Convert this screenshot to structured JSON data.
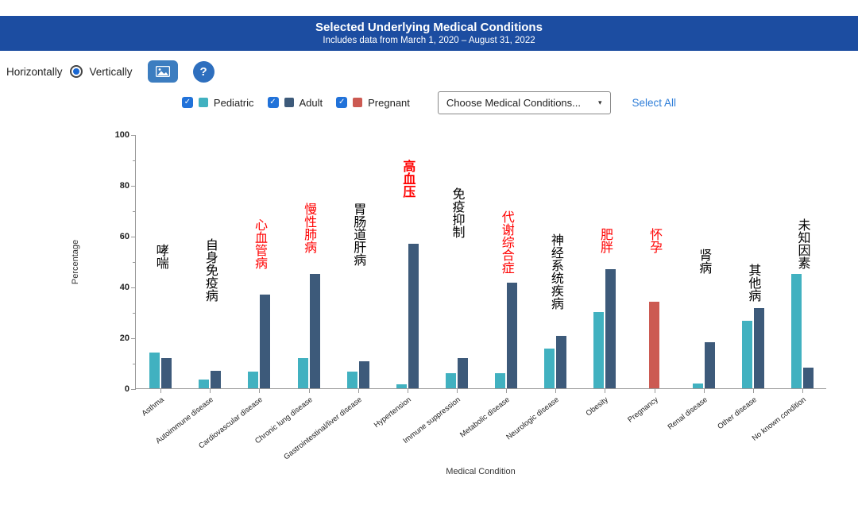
{
  "header": {
    "title": "Selected Underlying Medical Conditions",
    "subtitle": "Includes data from March 1, 2020 – August 31, 2022"
  },
  "controls": {
    "horizontal_label": "Horizontally",
    "vertical_label": "Vertically",
    "selected_orientation": "Vertically",
    "image_button_icon": "image-icon",
    "help_label": "?"
  },
  "legend": {
    "check_glyph": "✓",
    "items": [
      {
        "label": "Pediatric",
        "color": "#41b1c0",
        "checked": true
      },
      {
        "label": "Adult",
        "color": "#3d5a7a",
        "checked": true
      },
      {
        "label": "Pregnant",
        "color": "#cc5a52",
        "checked": true
      }
    ],
    "dropdown_label": "Choose Medical Conditions...",
    "dropdown_caret": "▾",
    "select_all_label": "Select All"
  },
  "chart_data": {
    "type": "bar",
    "title": "Selected Underlying Medical Conditions",
    "xlabel": "Medical Condition",
    "ylabel": "Percentage",
    "ylim": [
      0,
      100
    ],
    "y_major_ticks": [
      0,
      20,
      40,
      60,
      80,
      100
    ],
    "y_minor_ticks": [
      10,
      30,
      50,
      70,
      90
    ],
    "grid": false,
    "legend_position": "top",
    "categories": [
      "Asthma",
      "Autoimmune disease",
      "Cardiovascular disease",
      "Chronic lung disease",
      "Gastrointestinal/liver disease",
      "Hypertension",
      "Immune suppression",
      "Metabolic disease",
      "Neurologic disease",
      "Obesity",
      "Pregnancy",
      "Renal disease",
      "Other disease",
      "No known condition"
    ],
    "series": [
      {
        "name": "Pediatric",
        "color": "#41b1c0",
        "values": [
          14,
          3.5,
          6.5,
          12,
          6.5,
          1.5,
          6,
          6,
          15.5,
          30,
          null,
          2,
          26.5,
          45
        ]
      },
      {
        "name": "Adult",
        "color": "#3d5a7a",
        "values": [
          12,
          7,
          37,
          45,
          10.5,
          57,
          12,
          41.5,
          20.5,
          47,
          null,
          18,
          31.5,
          8
        ]
      },
      {
        "name": "Pregnant",
        "color": "#cc5a52",
        "values": [
          null,
          null,
          null,
          null,
          null,
          null,
          null,
          null,
          null,
          null,
          34,
          null,
          null,
          null
        ]
      }
    ],
    "annotations": [
      {
        "category": "Asthma",
        "text": "哮喘",
        "color": "#000000",
        "bold": false,
        "bottom_pct": 47
      },
      {
        "category": "Autoimmune disease",
        "text": "自身免疫病",
        "color": "#000000",
        "bold": false,
        "bottom_pct": 34
      },
      {
        "category": "Cardiovascular disease",
        "text": "心血管病",
        "color": "#ff0000",
        "bold": false,
        "bottom_pct": 47
      },
      {
        "category": "Chronic lung disease",
        "text": "慢性肺病",
        "color": "#ff0000",
        "bold": false,
        "bottom_pct": 53
      },
      {
        "category": "Gastrointestinal/liver disease",
        "text": "胃肠道肝病",
        "color": "#000000",
        "bold": false,
        "bottom_pct": 48
      },
      {
        "category": "Hypertension",
        "text": "高血压",
        "color": "#ff0000",
        "bold": true,
        "bottom_pct": 75
      },
      {
        "category": "Immune suppression",
        "text": "免疫抑制",
        "color": "#000000",
        "bold": false,
        "bottom_pct": 59
      },
      {
        "category": "Metabolic disease",
        "text": "代谢综合症",
        "color": "#ff0000",
        "bold": false,
        "bottom_pct": 45
      },
      {
        "category": "Neurologic disease",
        "text": "神经系统疾病",
        "color": "#000000",
        "bold": false,
        "bottom_pct": 31
      },
      {
        "category": "Obesity",
        "text": "肥胖",
        "color": "#ff0000",
        "bold": false,
        "bottom_pct": 53
      },
      {
        "category": "Pregnancy",
        "text": "怀孕",
        "color": "#ff0000",
        "bold": false,
        "bottom_pct": 53
      },
      {
        "category": "Renal disease",
        "text": "肾病",
        "color": "#000000",
        "bold": false,
        "bottom_pct": 45
      },
      {
        "category": "Other disease",
        "text": "其他病",
        "color": "#000000",
        "bold": false,
        "bottom_pct": 34
      },
      {
        "category": "No known condition",
        "text": "未知因素",
        "color": "#000000",
        "bold": false,
        "bottom_pct": 47
      }
    ]
  }
}
